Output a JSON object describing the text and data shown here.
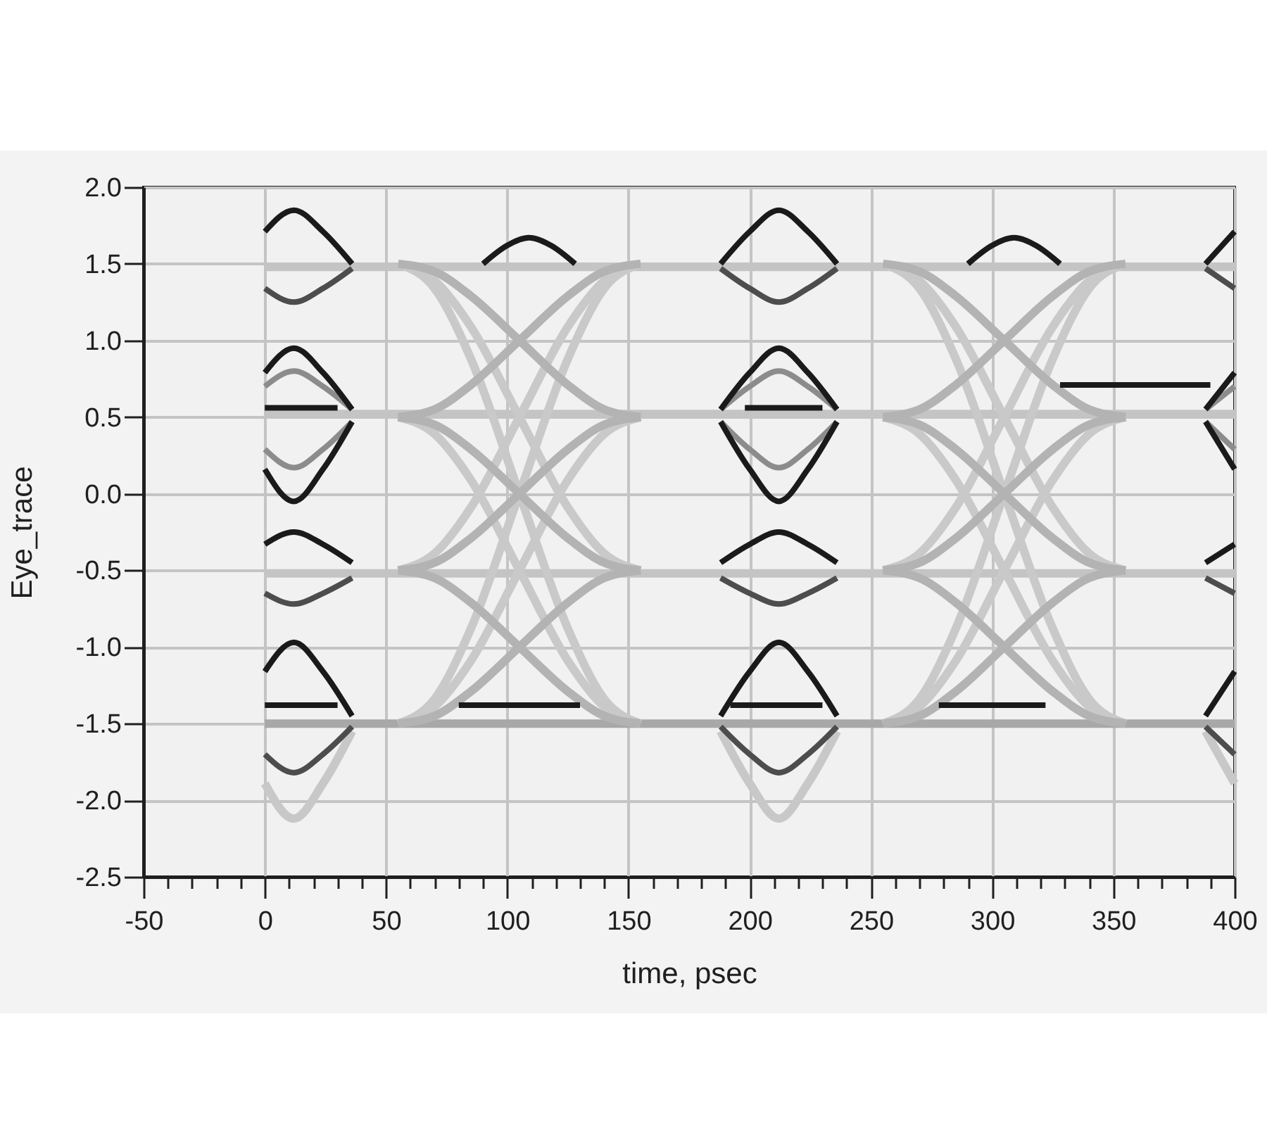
{
  "chart_data": {
    "type": "line",
    "xlabel": "time, psec",
    "ylabel": "Eye_trace",
    "xlim": [
      -50,
      400
    ],
    "ylim": [
      -2.5,
      2.0
    ],
    "xticks": [
      -50,
      {
        "value": -40,
        "label": null
      },
      {
        "value": -30,
        "label": null
      },
      {
        "value": -20,
        "label": null
      },
      {
        "value": -10,
        "label": null
      },
      0,
      {
        "value": 10,
        "label": null
      },
      {
        "value": 20,
        "label": null
      },
      {
        "value": 30,
        "label": null
      },
      {
        "value": 40,
        "label": null
      },
      50,
      {
        "value": 60,
        "label": null
      },
      {
        "value": 70,
        "label": null
      },
      {
        "value": 80,
        "label": null
      },
      {
        "value": 90,
        "label": null
      },
      100,
      {
        "value": 110,
        "label": null
      },
      {
        "value": 120,
        "label": null
      },
      {
        "value": 130,
        "label": null
      },
      {
        "value": 140,
        "label": null
      },
      150,
      {
        "value": 160,
        "label": null
      },
      {
        "value": 170,
        "label": null
      },
      {
        "value": 180,
        "label": null
      },
      {
        "value": 190,
        "label": null
      },
      200,
      {
        "value": 210,
        "label": null
      },
      {
        "value": 220,
        "label": null
      },
      {
        "value": 230,
        "label": null
      },
      {
        "value": 240,
        "label": null
      },
      250,
      {
        "value": 260,
        "label": null
      },
      {
        "value": 270,
        "label": null
      },
      {
        "value": 280,
        "label": null
      },
      {
        "value": 290,
        "label": null
      },
      300,
      {
        "value": 310,
        "label": null
      },
      {
        "value": 320,
        "label": null
      },
      {
        "value": 330,
        "label": null
      },
      {
        "value": 340,
        "label": null
      },
      350,
      {
        "value": 360,
        "label": null
      },
      {
        "value": 370,
        "label": null
      },
      {
        "value": 380,
        "label": null
      },
      {
        "value": 390,
        "label": null
      },
      400
    ],
    "yticks": [
      -2.5,
      {
        "value": -2,
        "label": "-2.0"
      },
      -1.5,
      {
        "value": -1,
        "label": "-1.0"
      },
      -0.5,
      {
        "value": 0,
        "label": "0.0"
      },
      0.5,
      {
        "value": 1,
        "label": "1.0"
      },
      1.5,
      {
        "value": 2,
        "label": "2.0"
      }
    ],
    "grid": true,
    "series": [
      {
        "color": "#c4c4c4",
        "x": [
          0,
          400
        ],
        "values": [
          1.48,
          1.48
        ]
      },
      {
        "color": "#c4c4c4",
        "x": [
          0,
          400
        ],
        "values": [
          0.52,
          0.52
        ]
      },
      {
        "color": "#c4c4c4",
        "x": [
          0,
          400
        ],
        "values": [
          -0.52,
          -0.52
        ]
      },
      {
        "color": "#a8a8a8",
        "x": [
          0,
          400
        ],
        "values": [
          -1.5,
          -1.5
        ]
      },
      {
        "color": "#c9c9c9",
        "x": [
          55,
          70,
          85,
          105,
          125,
          140,
          155,
          205,
          255,
          270,
          285,
          305,
          325,
          340,
          355
        ],
        "values": [
          1.5,
          1.34,
          0.88,
          0,
          -0.88,
          -1.34,
          -1.5,
          null,
          1.5,
          1.34,
          0.88,
          0,
          -0.88,
          -1.34,
          -1.5
        ]
      },
      {
        "color": "#c9c9c9",
        "x": [
          55,
          70,
          85,
          105,
          125,
          140,
          155,
          205,
          255,
          270,
          285,
          305,
          325,
          340,
          355
        ],
        "values": [
          -1.5,
          -1.34,
          -0.88,
          0,
          0.88,
          1.34,
          1.5,
          null,
          -1.5,
          -1.34,
          -0.88,
          0,
          0.88,
          1.34,
          1.5
        ]
      },
      {
        "color": "#c9c9c9",
        "x": [
          55,
          70,
          85,
          105,
          125,
          140,
          155,
          205,
          255,
          270,
          285,
          305,
          325,
          340,
          355
        ],
        "values": [
          1.5,
          1.39,
          1.09,
          0.5,
          -0.09,
          -0.39,
          -0.5,
          null,
          1.5,
          1.39,
          1.09,
          0.5,
          -0.09,
          -0.39,
          -0.5
        ]
      },
      {
        "color": "#c9c9c9",
        "x": [
          55,
          70,
          85,
          105,
          125,
          140,
          155,
          205,
          255,
          270,
          285,
          305,
          325,
          340,
          355
        ],
        "values": [
          -0.5,
          -0.39,
          -0.09,
          0.5,
          1.09,
          1.39,
          1.5,
          null,
          -0.5,
          -0.39,
          -0.09,
          0.5,
          1.09,
          1.39,
          1.5
        ]
      },
      {
        "color": "#c9c9c9",
        "x": [
          55,
          70,
          85,
          105,
          125,
          140,
          155,
          205,
          255,
          270,
          285,
          305,
          325,
          340,
          355
        ],
        "values": [
          0.5,
          0.39,
          0.09,
          -0.5,
          -1.09,
          -1.39,
          -1.5,
          null,
          0.5,
          0.39,
          0.09,
          -0.5,
          -1.09,
          -1.39,
          -1.5
        ]
      },
      {
        "color": "#c9c9c9",
        "x": [
          55,
          70,
          85,
          105,
          125,
          140,
          155,
          205,
          255,
          270,
          285,
          305,
          325,
          340,
          355
        ],
        "values": [
          -1.5,
          -1.39,
          -1.09,
          -0.5,
          0.09,
          0.39,
          0.5,
          null,
          -1.5,
          -1.39,
          -1.09,
          -0.5,
          0.09,
          0.39,
          0.5
        ]
      },
      {
        "color": "#b3b3b3",
        "x": [
          55,
          70,
          85,
          105,
          125,
          140,
          155,
          205,
          255,
          270,
          285,
          305,
          325,
          340,
          355
        ],
        "values": [
          1.5,
          1.45,
          1.29,
          1,
          0.71,
          0.55,
          0.5,
          null,
          1.5,
          1.45,
          1.29,
          1,
          0.71,
          0.55,
          0.5
        ]
      },
      {
        "color": "#b3b3b3",
        "x": [
          55,
          70,
          85,
          105,
          125,
          140,
          155,
          205,
          255,
          270,
          285,
          305,
          325,
          340,
          355
        ],
        "values": [
          0.5,
          0.55,
          0.71,
          1,
          1.29,
          1.45,
          1.5,
          null,
          0.5,
          0.55,
          0.71,
          1,
          1.29,
          1.45,
          1.5
        ]
      },
      {
        "color": "#b3b3b3",
        "x": [
          55,
          70,
          85,
          105,
          125,
          140,
          155,
          205,
          255,
          270,
          285,
          305,
          325,
          340,
          355
        ],
        "values": [
          0.5,
          0.45,
          0.29,
          0,
          -0.29,
          -0.45,
          -0.5,
          null,
          0.5,
          0.45,
          0.29,
          0,
          -0.29,
          -0.45,
          -0.5
        ]
      },
      {
        "color": "#b3b3b3",
        "x": [
          55,
          70,
          85,
          105,
          125,
          140,
          155,
          205,
          255,
          270,
          285,
          305,
          325,
          340,
          355
        ],
        "values": [
          -0.5,
          -0.45,
          -0.29,
          0,
          0.29,
          0.45,
          0.5,
          null,
          -0.5,
          -0.45,
          -0.29,
          0,
          0.29,
          0.45,
          0.5
        ]
      },
      {
        "color": "#b3b3b3",
        "x": [
          55,
          70,
          85,
          105,
          125,
          140,
          155,
          205,
          255,
          270,
          285,
          305,
          325,
          340,
          355
        ],
        "values": [
          -0.5,
          -0.55,
          -0.71,
          -1,
          -1.29,
          -1.45,
          -1.5,
          null,
          -0.5,
          -0.55,
          -0.71,
          -1,
          -1.29,
          -1.45,
          -1.5
        ]
      },
      {
        "color": "#b3b3b3",
        "x": [
          55,
          70,
          85,
          105,
          125,
          140,
          155,
          205,
          255,
          270,
          285,
          305,
          325,
          340,
          355
        ],
        "values": [
          -1.5,
          -1.45,
          -1.29,
          -1,
          -0.71,
          -0.55,
          -0.5,
          null,
          -1.5,
          -1.45,
          -1.29,
          -1,
          -0.71,
          -0.55,
          -0.5
        ]
      },
      {
        "color": "#c8c8c8",
        "x": [
          0,
          12,
          24,
          36,
          112,
          188,
          200,
          212,
          224,
          236,
          312,
          388,
          400
        ],
        "values": [
          -1.89,
          -2.12,
          -1.89,
          -1.55,
          null,
          -1.55,
          -1.89,
          -2.12,
          -1.89,
          -1.55,
          null,
          -1.55,
          -1.89
        ]
      },
      {
        "color": "#8c8c8c",
        "x": [
          0,
          12,
          24,
          36,
          112,
          188,
          200,
          212,
          224,
          236,
          312,
          388,
          400
        ],
        "values": [
          0.7,
          0.8,
          0.7,
          0.55,
          null,
          0.55,
          0.7,
          0.8,
          0.7,
          0.55,
          null,
          0.55,
          0.7
        ]
      },
      {
        "color": "#8c8c8c",
        "x": [
          0,
          12,
          24,
          36,
          112,
          188,
          200,
          212,
          224,
          236,
          312,
          388,
          400
        ],
        "values": [
          0.29,
          0.17,
          0.29,
          0.47,
          null,
          0.47,
          0.29,
          0.17,
          0.29,
          0.47,
          null,
          0.47,
          0.29
        ]
      },
      {
        "color": "#4d4d4d",
        "x": [
          0,
          12,
          24,
          36,
          112,
          188,
          200,
          212,
          224,
          236,
          312,
          388,
          400
        ],
        "values": [
          1.34,
          1.25,
          1.34,
          1.47,
          null,
          1.47,
          1.34,
          1.25,
          1.34,
          1.47,
          null,
          1.47,
          1.34
        ]
      },
      {
        "color": "#4d4d4d",
        "x": [
          0,
          12,
          24,
          36,
          112,
          188,
          200,
          212,
          224,
          236,
          312,
          388,
          400
        ],
        "values": [
          -0.65,
          -0.72,
          -0.65,
          -0.55,
          null,
          -0.55,
          -0.65,
          -0.72,
          -0.65,
          -0.55,
          null,
          -0.55,
          -0.65
        ]
      },
      {
        "color": "#4d4d4d",
        "x": [
          0,
          12,
          24,
          36,
          112,
          188,
          200,
          212,
          224,
          236,
          312,
          388,
          400
        ],
        "values": [
          -1.7,
          -1.82,
          -1.7,
          -1.52,
          null,
          -1.52,
          -1.7,
          -1.82,
          -1.7,
          -1.52,
          null,
          -1.52,
          -1.7
        ]
      },
      {
        "color": "#1a1a1a",
        "x": [
          0,
          12,
          24,
          36,
          112,
          188,
          200,
          212,
          224,
          236,
          312,
          388,
          400
        ],
        "values": [
          1.71,
          1.85,
          1.71,
          1.5,
          null,
          1.5,
          1.71,
          1.85,
          1.71,
          1.5,
          null,
          1.5,
          1.71
        ]
      },
      {
        "color": "#1a1a1a",
        "x": [
          0,
          12,
          24,
          36,
          112,
          188,
          200,
          212,
          224,
          236,
          312,
          388,
          400
        ],
        "values": [
          0.79,
          0.95,
          0.79,
          0.55,
          null,
          0.55,
          0.79,
          0.95,
          0.79,
          0.55,
          null,
          0.55,
          0.79
        ]
      },
      {
        "color": "#1a1a1a",
        "x": [
          0,
          12,
          24,
          36,
          112,
          188,
          200,
          212,
          224,
          236,
          312,
          388,
          400
        ],
        "values": [
          0.16,
          -0.05,
          0.16,
          0.47,
          null,
          0.47,
          0.16,
          -0.05,
          0.16,
          0.47,
          null,
          0.47,
          0.16
        ]
      },
      {
        "color": "#1a1a1a",
        "x": [
          0,
          12,
          24,
          36,
          112,
          188,
          200,
          212,
          224,
          236,
          312,
          388,
          400
        ],
        "values": [
          -0.33,
          -0.25,
          -0.33,
          -0.45,
          null,
          -0.45,
          -0.33,
          -0.25,
          -0.33,
          -0.45,
          null,
          -0.45,
          -0.33
        ]
      },
      {
        "color": "#1a1a1a",
        "x": [
          0,
          12,
          24,
          36,
          112,
          188,
          200,
          212,
          224,
          236,
          312,
          388,
          400
        ],
        "values": [
          -1.16,
          -0.97,
          -1.16,
          -1.45,
          null,
          -1.45,
          -1.16,
          -0.97,
          -1.16,
          -1.45,
          null,
          -1.45,
          -1.16
        ]
      },
      {
        "color": "#1a1a1a",
        "x": [
          90,
          100,
          109,
          118,
          128,
          208,
          290,
          300,
          309,
          318,
          328
        ],
        "values": [
          1.5,
          1.62,
          1.67,
          1.62,
          1.5,
          null,
          1.5,
          1.62,
          1.67,
          1.62,
          1.5
        ]
      },
      {
        "color": "#1a1a1a",
        "x": [
          328,
          390
        ],
        "values": [
          0.71,
          0.71
        ]
      },
      {
        "color": "#1a1a1a",
        "x": [
          0,
          30,
          115,
          198,
          230
        ],
        "values": [
          0.56,
          0.56,
          null,
          0.56,
          0.56
        ]
      },
      {
        "color": "#1a1a1a",
        "x": [
          0,
          30,
          55,
          80,
          130,
          165,
          192,
          230,
          255,
          278,
          322
        ],
        "values": [
          -1.38,
          -1.38,
          null,
          -1.38,
          -1.38,
          null,
          -1.38,
          -1.38,
          null,
          -1.38,
          -1.38
        ]
      }
    ]
  }
}
